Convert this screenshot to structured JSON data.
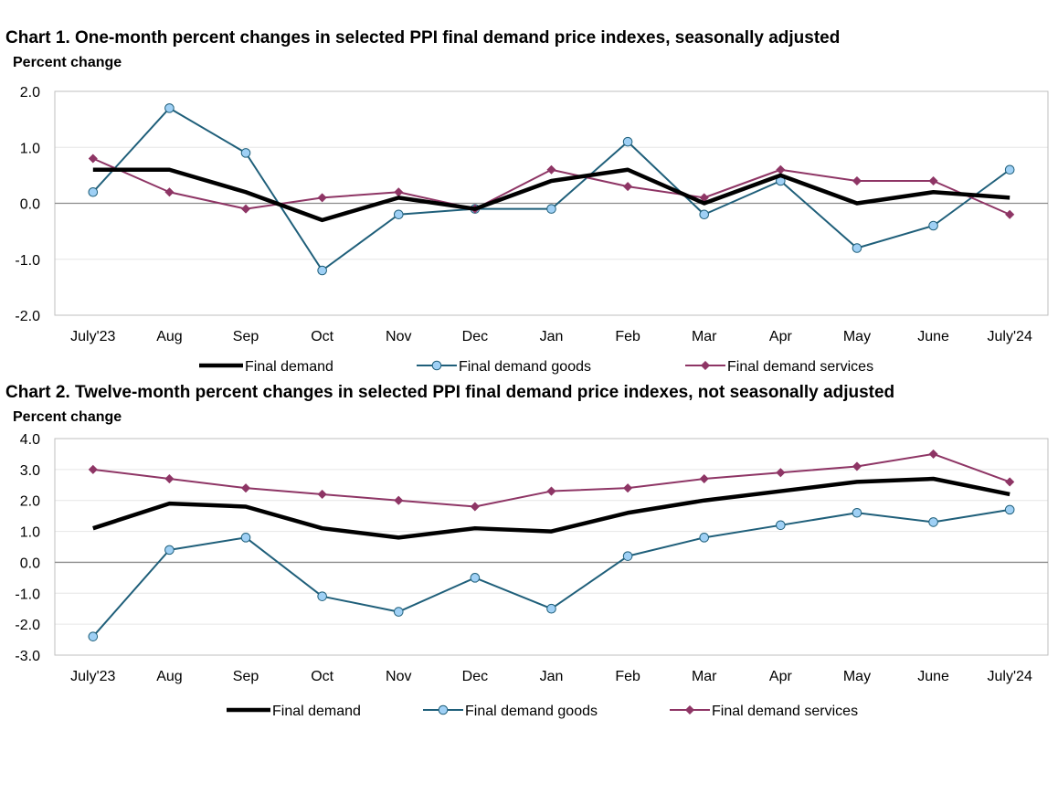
{
  "colors": {
    "final_demand": "#000000",
    "goods_line": "#1f5f7a",
    "goods_marker_fill": "#9fd0f5",
    "services": "#8e3565",
    "zero_line": "#8c8c8c",
    "grid": "#e6e6e6",
    "frame": "#bfbfbf"
  },
  "chart_data": [
    {
      "type": "line",
      "title": "Chart 1. One-month percent changes in selected PPI final demand price indexes, seasonally adjusted",
      "ylabel": "Percent change",
      "xlabel": "",
      "categories": [
        "July'23",
        "Aug",
        "Sep",
        "Oct",
        "Nov",
        "Dec",
        "Jan",
        "Feb",
        "Mar",
        "Apr",
        "May",
        "June",
        "July'24"
      ],
      "ylim": [
        -2.0,
        2.0
      ],
      "yticks": [
        "2.0",
        "1.0",
        "0.0",
        "-1.0",
        "-2.0"
      ],
      "ytick_values": [
        2.0,
        1.0,
        0.0,
        -1.0,
        -2.0
      ],
      "grid": true,
      "legend_position": "bottom",
      "series": [
        {
          "name": "Final demand",
          "key": "final_demand",
          "values": [
            0.6,
            0.6,
            0.2,
            -0.3,
            0.1,
            -0.1,
            0.4,
            0.6,
            0.0,
            0.5,
            0.0,
            0.2,
            0.1
          ]
        },
        {
          "name": "Final demand goods",
          "key": "goods",
          "values": [
            0.2,
            1.7,
            0.9,
            -1.2,
            -0.2,
            -0.1,
            -0.1,
            1.1,
            -0.2,
            0.4,
            -0.8,
            -0.4,
            0.6
          ]
        },
        {
          "name": "Final demand services",
          "key": "services",
          "values": [
            0.8,
            0.2,
            -0.1,
            0.1,
            0.2,
            -0.1,
            0.6,
            0.3,
            0.1,
            0.6,
            0.4,
            0.4,
            -0.2
          ]
        }
      ]
    },
    {
      "type": "line",
      "title": "Chart 2. Twelve-month percent changes in selected PPI final demand price indexes, not seasonally adjusted",
      "ylabel": "Percent change",
      "xlabel": "",
      "categories": [
        "July'23",
        "Aug",
        "Sep",
        "Oct",
        "Nov",
        "Dec",
        "Jan",
        "Feb",
        "Mar",
        "Apr",
        "May",
        "June",
        "July'24"
      ],
      "ylim": [
        -3.0,
        4.0
      ],
      "yticks": [
        "4.0",
        "3.0",
        "2.0",
        "1.0",
        "0.0",
        "-1.0",
        "-2.0",
        "-3.0"
      ],
      "ytick_values": [
        4.0,
        3.0,
        2.0,
        1.0,
        0.0,
        -1.0,
        -2.0,
        -3.0
      ],
      "grid": true,
      "legend_position": "bottom",
      "series": [
        {
          "name": "Final demand",
          "key": "final_demand",
          "values": [
            1.1,
            1.9,
            1.8,
            1.1,
            0.8,
            1.1,
            1.0,
            1.6,
            2.0,
            2.3,
            2.6,
            2.7,
            2.2
          ]
        },
        {
          "name": "Final demand goods",
          "key": "goods",
          "values": [
            -2.4,
            0.4,
            0.8,
            -1.1,
            -1.6,
            -0.5,
            -1.5,
            0.2,
            0.8,
            1.2,
            1.6,
            1.3,
            1.7
          ]
        },
        {
          "name": "Final demand services",
          "key": "services",
          "values": [
            3.0,
            2.7,
            2.4,
            2.2,
            2.0,
            1.8,
            2.3,
            2.4,
            2.7,
            2.9,
            3.1,
            3.5,
            2.6
          ]
        }
      ]
    }
  ]
}
